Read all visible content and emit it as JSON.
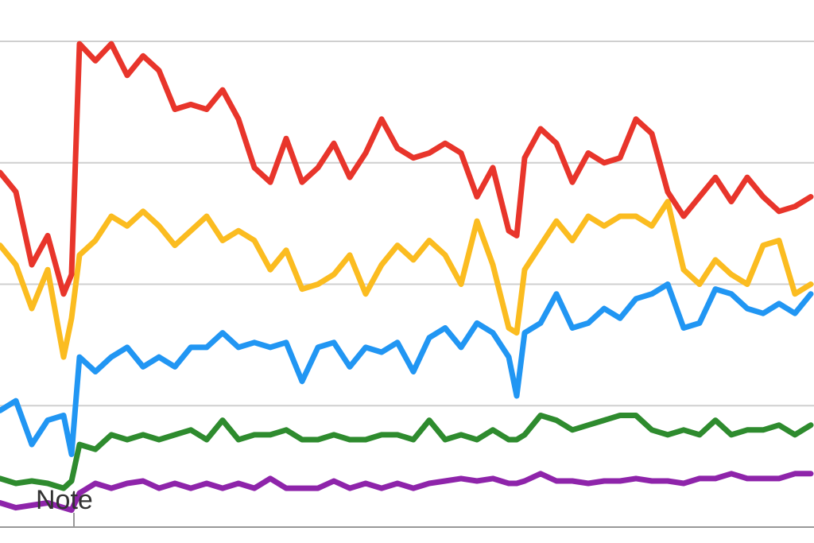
{
  "chart_data": {
    "type": "line",
    "annotation": "Note",
    "x": [
      0,
      2,
      4,
      6,
      8,
      9,
      10,
      12,
      14,
      16,
      18,
      20,
      22,
      24,
      26,
      28,
      30,
      32,
      34,
      36,
      38,
      40,
      42,
      44,
      46,
      48,
      50,
      52,
      54,
      56,
      58,
      60,
      62,
      64,
      65,
      66,
      68,
      70,
      72,
      74,
      76,
      78,
      80,
      82,
      84,
      86,
      88,
      90,
      92,
      94,
      96,
      98,
      100,
      102
    ],
    "xlim": [
      0,
      102.4
    ],
    "ylim": [
      0,
      100
    ],
    "yticks": [
      0,
      25,
      50,
      75,
      100
    ],
    "grid": true,
    "series": [
      {
        "color": "#8e24aa",
        "values": [
          5,
          4,
          4.5,
          5,
          4,
          3.5,
          7,
          9,
          8,
          9,
          9.5,
          8,
          9,
          8,
          9,
          8,
          9,
          8,
          10,
          8,
          8,
          8,
          9.5,
          8,
          9,
          8,
          9,
          8,
          9,
          9.5,
          10,
          9.5,
          10,
          9,
          9,
          9.5,
          11,
          9.5,
          9.5,
          9,
          9.5,
          9.5,
          10,
          9.5,
          9.5,
          9,
          10,
          10,
          11,
          10,
          10,
          10,
          11,
          11
        ]
      },
      {
        "color": "#2e8b2e",
        "values": [
          10,
          9,
          9.5,
          9,
          8,
          9.5,
          17,
          16,
          19,
          18,
          19,
          18,
          19,
          20,
          18,
          22,
          18,
          19,
          19,
          20,
          18,
          18,
          19,
          18,
          18,
          19,
          19,
          18,
          22,
          18,
          19,
          18,
          20,
          18,
          18,
          19,
          23,
          22,
          20,
          21,
          22,
          23,
          23,
          20,
          19,
          20,
          19,
          22,
          19,
          20,
          20,
          21,
          19,
          21
        ]
      },
      {
        "color": "#2196f3",
        "values": [
          24,
          26,
          17,
          22,
          23,
          15,
          35,
          32,
          35,
          37,
          33,
          35,
          33,
          37,
          37,
          40,
          37,
          38,
          37,
          38,
          30,
          37,
          38,
          33,
          37,
          36,
          38,
          32,
          39,
          41,
          37,
          42,
          40,
          35,
          27,
          40,
          42,
          48,
          41,
          42,
          45,
          43,
          47,
          48,
          50,
          41,
          42,
          49,
          48,
          45,
          44,
          46,
          44,
          48
        ]
      },
      {
        "color": "#fbbc20",
        "values": [
          58,
          54,
          45,
          53,
          35,
          43,
          56,
          59,
          64,
          62,
          65,
          62,
          58,
          61,
          64,
          59,
          61,
          59,
          53,
          57,
          49,
          50,
          52,
          56,
          48,
          54,
          58,
          55,
          59,
          56,
          50,
          63,
          54,
          41,
          40,
          53,
          58,
          63,
          59,
          64,
          62,
          64,
          64,
          62,
          67,
          53,
          50,
          55,
          52,
          50,
          58,
          59,
          48,
          50
        ]
      },
      {
        "color": "#e8352b",
        "values": [
          73,
          69,
          54,
          60,
          48,
          52,
          99.5,
          96,
          99.5,
          93,
          97,
          94,
          86,
          87,
          86,
          90,
          84,
          74,
          71,
          80,
          71,
          74,
          79,
          72,
          77,
          84,
          78,
          76,
          77,
          79,
          77,
          68,
          74,
          61,
          60,
          76,
          82,
          79,
          71,
          77,
          75,
          76,
          84,
          81,
          69,
          64,
          68,
          72,
          67,
          72,
          68,
          65,
          66,
          68
        ]
      }
    ]
  }
}
